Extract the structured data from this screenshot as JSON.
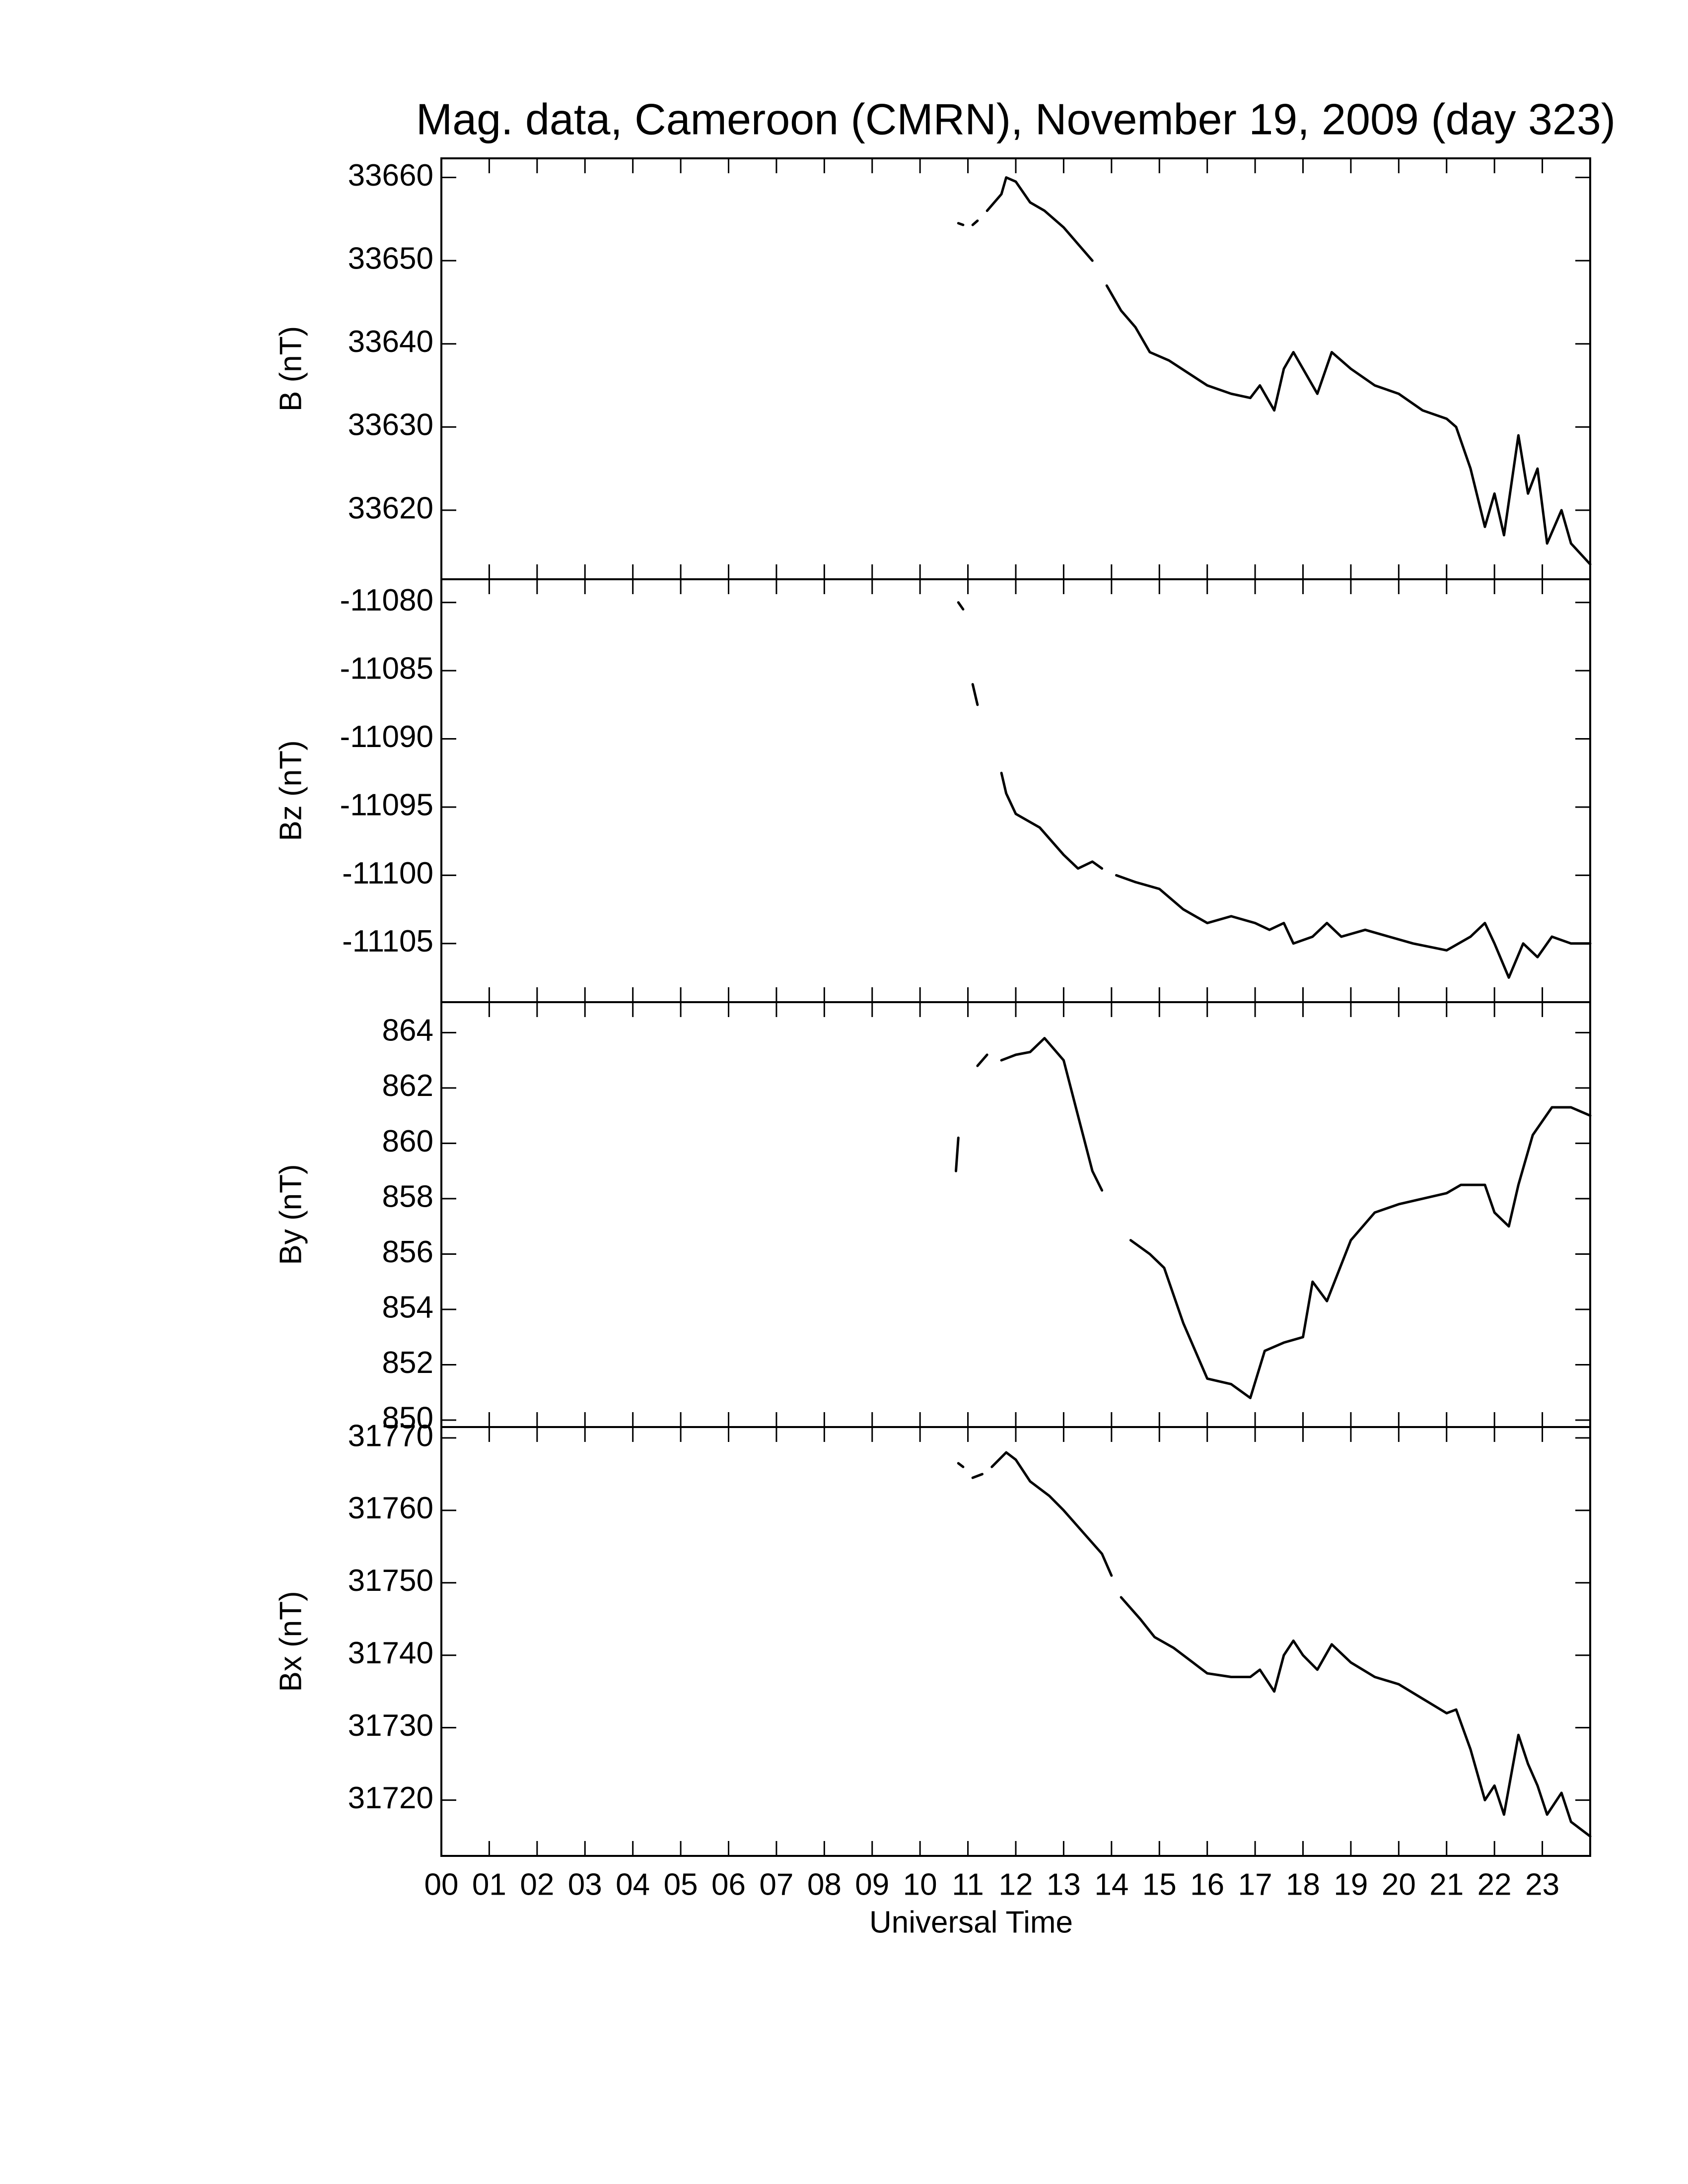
{
  "chart_data": [
    {
      "type": "line",
      "title": "Mag. data, Cameroon (CMRN), November 19, 2009 (day 323)",
      "ylabel": "B (nT)",
      "xlim": [
        0,
        24
      ],
      "ylim": [
        33611.7,
        33662.3
      ],
      "yticks": [
        33620,
        33630,
        33640,
        33650,
        33660
      ],
      "series": [
        {
          "name": "B",
          "color": "#000000",
          "x": [
            10.8,
            10.9,
            10.95,
            11.1,
            11.2,
            11.3,
            11.4,
            11.7,
            11.8,
            12.0,
            12.3,
            12.6,
            13.0,
            13.3,
            13.6,
            13.85,
            13.9,
            14.2,
            14.5,
            14.8,
            15.2,
            15.6,
            16.0,
            16.5,
            16.9,
            17.1,
            17.4,
            17.6,
            17.8,
            18.0,
            18.3,
            18.6,
            19.0,
            19.5,
            20.0,
            20.5,
            21.0,
            21.2,
            21.5,
            21.8,
            22.0,
            22.2,
            22.5,
            22.7,
            22.9,
            23.1,
            23.4,
            23.6,
            24.0
          ],
          "values": [
            33654.5,
            33654.3,
            null,
            33654.3,
            33654.8,
            null,
            33656,
            33658,
            33660,
            33659.5,
            33657,
            33656,
            33654,
            33652,
            33650,
            null,
            33647,
            33644,
            33642,
            33639,
            33638,
            33636.5,
            33635,
            33634,
            33633.5,
            33635,
            33632,
            33637,
            33639,
            33637,
            33634,
            33639,
            33637,
            33635,
            33634,
            33632,
            33631,
            33630,
            33625,
            33618,
            33622,
            33617,
            33629,
            33622,
            33625,
            33616,
            33620,
            33616,
            33613.5
          ]
        }
      ]
    },
    {
      "type": "line",
      "ylabel": "Bz (nT)",
      "xlim": [
        0,
        24
      ],
      "ylim": [
        -11109.3,
        -11078.3
      ],
      "yticks": [
        -11105,
        -11100,
        -11095,
        -11090,
        -11085,
        -11080
      ],
      "series": [
        {
          "name": "Bz",
          "color": "#000000",
          "x": [
            10.8,
            10.9,
            11.0,
            11.1,
            11.2,
            11.3,
            11.4,
            11.5,
            11.7,
            11.8,
            12.0,
            12.5,
            13.0,
            13.3,
            13.6,
            13.8,
            13.9,
            14.1,
            14.5,
            15.0,
            15.5,
            16.0,
            16.5,
            17.0,
            17.3,
            17.6,
            17.8,
            18.2,
            18.5,
            18.8,
            19.3,
            19.8,
            20.3,
            21.0,
            21.5,
            21.8,
            22.0,
            22.3,
            22.6,
            22.9,
            23.2,
            23.6,
            24.0
          ],
          "values": [
            -11080,
            -11080.5,
            null,
            -11086,
            -11087.5,
            null,
            -11089.5,
            null,
            -11092.5,
            -11094,
            -11095.5,
            -11096.5,
            -11098.5,
            -11099.5,
            -11099,
            -11099.5,
            null,
            -11100,
            -11100.5,
            -11101,
            -11102.5,
            -11103.5,
            -11103,
            -11103.5,
            -11104,
            -11103.5,
            -11105,
            -11104.5,
            -11103.5,
            -11104.5,
            -11104,
            -11104.5,
            -11105,
            -11105.5,
            -11104.5,
            -11103.5,
            -11105,
            -11107.5,
            -11105,
            -11106,
            -11104.5,
            -11105,
            -11105
          ]
        }
      ]
    },
    {
      "type": "line",
      "ylabel": "By (nT)",
      "xlim": [
        0,
        24
      ],
      "ylim": [
        849.75,
        865.1
      ],
      "yticks": [
        850,
        852,
        854,
        856,
        858,
        860,
        862,
        864
      ],
      "series": [
        {
          "name": "By",
          "color": "#000000",
          "x": [
            10.75,
            10.8,
            11.0,
            11.2,
            11.4,
            11.5,
            11.7,
            12.0,
            12.3,
            12.6,
            13.0,
            13.3,
            13.6,
            13.8,
            13.9,
            14.1,
            14.2,
            14.4,
            14.8,
            15.1,
            15.5,
            16.0,
            16.5,
            16.9,
            17.2,
            17.6,
            18.0,
            18.2,
            18.5,
            19.0,
            19.5,
            20.0,
            20.5,
            21.0,
            21.3,
            21.8,
            22.0,
            22.3,
            22.5,
            22.8,
            23.2,
            23.6,
            24.0
          ],
          "values": [
            859,
            860.2,
            null,
            862.8,
            863.2,
            null,
            863,
            863.2,
            863.3,
            863.8,
            863,
            861,
            859,
            858.3,
            null,
            857,
            null,
            856.5,
            856,
            855.5,
            853.5,
            851.5,
            851.3,
            850.8,
            852.5,
            852.8,
            853,
            855,
            854.3,
            856.5,
            857.5,
            857.8,
            858,
            858.2,
            858.5,
            858.5,
            857.5,
            857,
            858.5,
            860.3,
            861.3,
            861.3,
            861
          ]
        }
      ]
    },
    {
      "type": "line",
      "ylabel": "Bx (nT)",
      "xlabel": "Universal Time",
      "xlim": [
        0,
        24
      ],
      "ylim": [
        31712.3,
        31771.5
      ],
      "yticks": [
        31720,
        31730,
        31740,
        31750,
        31760,
        31770
      ],
      "xticks": [
        {
          "value": 0,
          "label": "00"
        },
        {
          "value": 1,
          "label": "01"
        },
        {
          "value": 2,
          "label": "02"
        },
        {
          "value": 3,
          "label": "03"
        },
        {
          "value": 4,
          "label": "04"
        },
        {
          "value": 5,
          "label": "05"
        },
        {
          "value": 6,
          "label": "06"
        },
        {
          "value": 7,
          "label": "07"
        },
        {
          "value": 8,
          "label": "08"
        },
        {
          "value": 9,
          "label": "09"
        },
        10,
        11,
        12,
        13,
        14,
        15,
        16,
        17,
        18,
        19,
        20,
        21,
        22,
        23
      ],
      "series": [
        {
          "name": "Bx",
          "color": "#000000",
          "x": [
            10.8,
            10.9,
            11.0,
            11.1,
            11.3,
            11.4,
            11.5,
            11.8,
            12.0,
            12.3,
            12.7,
            13.0,
            13.4,
            13.8,
            14.0,
            14.1,
            14.2,
            14.6,
            14.9,
            15.3,
            15.7,
            16.0,
            16.5,
            16.9,
            17.1,
            17.4,
            17.6,
            17.8,
            18.0,
            18.3,
            18.6,
            19.0,
            19.5,
            20.0,
            20.5,
            21.0,
            21.2,
            21.5,
            21.8,
            22.0,
            22.2,
            22.5,
            22.7,
            22.9,
            23.1,
            23.4,
            23.6,
            24.0
          ],
          "values": [
            31766.5,
            31766,
            null,
            31764.5,
            31765,
            null,
            31766,
            31768,
            31767,
            31764,
            31762,
            31760,
            31757,
            31754,
            31751,
            null,
            31748,
            31745,
            31742.5,
            31741,
            31739,
            31737.5,
            31737,
            31737,
            31738,
            31735,
            31740,
            31742,
            31740,
            31738,
            31741.5,
            31739,
            31737,
            31736,
            31734,
            31732,
            31732.5,
            31727,
            31720,
            31722,
            31718,
            31729,
            31725,
            31722,
            31718,
            31721,
            31717,
            31715
          ]
        }
      ]
    }
  ]
}
